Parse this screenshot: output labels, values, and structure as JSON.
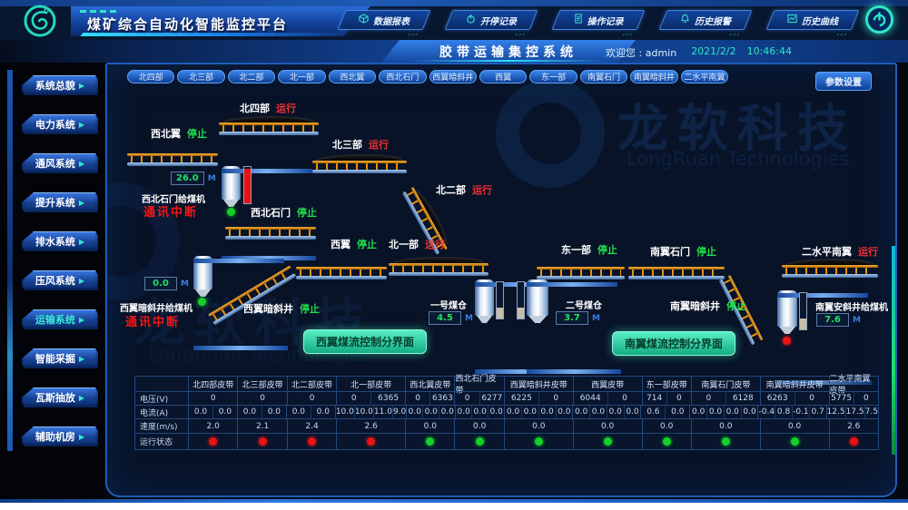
{
  "topbar": {
    "title": "煤矿综合自动化智能监控平台",
    "nav": [
      {
        "label": "数据报表",
        "icon": "report-cube-icon"
      },
      {
        "label": "开停记录",
        "icon": "power-record-icon"
      },
      {
        "label": "操作记录",
        "icon": "operation-doc-icon"
      },
      {
        "label": "历史报警",
        "icon": "alarm-bell-icon"
      },
      {
        "label": "历史曲线",
        "icon": "history-curve-icon"
      }
    ]
  },
  "header": {
    "system_title": "胶带运输集控系统",
    "welcome": "欢迎您 : admin",
    "date": "2021/2/2",
    "time": "10:46:44"
  },
  "sidebar": {
    "items": [
      "系统总貌",
      "电力系统",
      "通风系统",
      "提升系统",
      "排水系统",
      "压风系统",
      "运输系统",
      "智能采掘",
      "瓦斯抽放",
      "辅助机房"
    ],
    "active": "运输系统"
  },
  "tabs": [
    "北四部",
    "北三部",
    "北二部",
    "北一部",
    "西北翼",
    "西北石门",
    "西翼暗斜井",
    "西翼",
    "东一部",
    "南翼石门",
    "南翼暗斜井",
    "二水平南翼"
  ],
  "settings_button": "参数设置",
  "watermark": {
    "cn": "龙软科技",
    "en": "LongRuan Technologies"
  },
  "diagram": {
    "belts": [
      {
        "label": "北四部",
        "status": "运行",
        "running": true
      },
      {
        "label": "西北翼",
        "status": "停止",
        "running": false
      },
      {
        "label": "北三部",
        "status": "运行",
        "running": true
      },
      {
        "label": "北二部",
        "status": "运行",
        "running": true
      },
      {
        "label": "西北石门",
        "status": "停止",
        "running": false
      },
      {
        "label": "西翼",
        "status": "停止",
        "running": false
      },
      {
        "label": "北一部",
        "status": "运行",
        "running": true
      },
      {
        "label": "东一部",
        "status": "停止",
        "running": false
      },
      {
        "label": "南翼石门",
        "status": "停止",
        "running": false
      },
      {
        "label": "二水平南翼",
        "status": "运行",
        "running": true
      },
      {
        "label": "西翼暗斜井",
        "status": "停止",
        "running": false
      },
      {
        "label": "南翼暗斜井",
        "status": "停止",
        "running": false
      }
    ],
    "feeders": [
      {
        "label": "西北石门给煤机",
        "value": "26.0",
        "unit": "M",
        "comm_error": "通讯中断",
        "dot": "green"
      },
      {
        "label": "西翼暗斜井给煤机",
        "value": "0.0",
        "unit": "M",
        "comm_error": "通讯中断",
        "dot": "green"
      },
      {
        "label": "南翼安斜井给煤机",
        "value": "7.6",
        "unit": "M",
        "dot": "red"
      }
    ],
    "bunkers": [
      {
        "label": "一号煤仓",
        "value": "4.5",
        "unit": "M"
      },
      {
        "label": "二号煤仓",
        "value": "3.7",
        "unit": "M"
      }
    ],
    "flow_buttons": [
      "西翼煤流控制分界面",
      "南翼煤流控制分界面"
    ]
  },
  "table": {
    "row_labels": [
      "电压(V)",
      "电流(A)",
      "速度(m/s)",
      "运行状态"
    ],
    "columns": [
      {
        "name": "北四部皮带",
        "voltage": [
          "0"
        ],
        "current": [
          "0.0",
          "0.0"
        ],
        "speed": "2.0",
        "status": "red"
      },
      {
        "name": "北三部皮带",
        "voltage": [
          "0"
        ],
        "current": [
          "0.0",
          "0.0"
        ],
        "speed": "2.1",
        "status": "red"
      },
      {
        "name": "北二部皮带",
        "voltage": [
          "0"
        ],
        "current": [
          "0.0",
          "0.0"
        ],
        "speed": "2.4",
        "status": "red"
      },
      {
        "name": "北一部皮带",
        "voltage": [
          "0",
          "6365"
        ],
        "current": [
          "10.0",
          "10.0",
          "11.0",
          "9.0"
        ],
        "speed": "2.6",
        "status": "red"
      },
      {
        "name": "西北翼皮带",
        "voltage": [
          "0",
          "6363"
        ],
        "current": [
          "0.0",
          "0.0",
          "0.0"
        ],
        "speed": "0.0",
        "status": "green"
      },
      {
        "name": "西北石门皮带",
        "voltage": [
          "0",
          "6277"
        ],
        "current": [
          "0.0",
          "0.0",
          "0.0"
        ],
        "speed": "0.0",
        "status": "green"
      },
      {
        "name": "西翼暗斜井皮带",
        "voltage": [
          "6225",
          "0"
        ],
        "current": [
          "0.0",
          "0.0",
          "0.0",
          "0.0"
        ],
        "speed": "0.0",
        "status": "green"
      },
      {
        "name": "西翼皮带",
        "voltage": [
          "6044",
          "0"
        ],
        "current": [
          "0.0",
          "0.0",
          "0.0",
          "0.0"
        ],
        "speed": "0.0",
        "status": "green"
      },
      {
        "name": "东一部皮带",
        "voltage": [
          "714",
          "0"
        ],
        "current": [
          "0.6",
          "0.0"
        ],
        "speed": "0.0",
        "status": "green"
      },
      {
        "name": "南翼石门皮带",
        "voltage": [
          "0",
          "6128"
        ],
        "current": [
          "0.0",
          "0.0",
          "0.0",
          "0.0"
        ],
        "speed": "0.0",
        "status": "green"
      },
      {
        "name": "南翼暗斜井皮带",
        "voltage": [
          "6263",
          "0"
        ],
        "current": [
          "-0.4",
          "0.8",
          "-0.1",
          "0.7"
        ],
        "speed": "0.0",
        "status": "green"
      },
      {
        "name": "二水平南翼皮带",
        "voltage": [
          "5775",
          "0"
        ],
        "current": [
          "12.5",
          "17.5",
          "7.5"
        ],
        "speed": "2.6",
        "status": "red"
      }
    ]
  },
  "colors": {
    "accent_teal": "#2ee6c8",
    "run_red": "#f23030",
    "stop_green": "#1ee048",
    "panel_border": "#1e5cb8"
  }
}
